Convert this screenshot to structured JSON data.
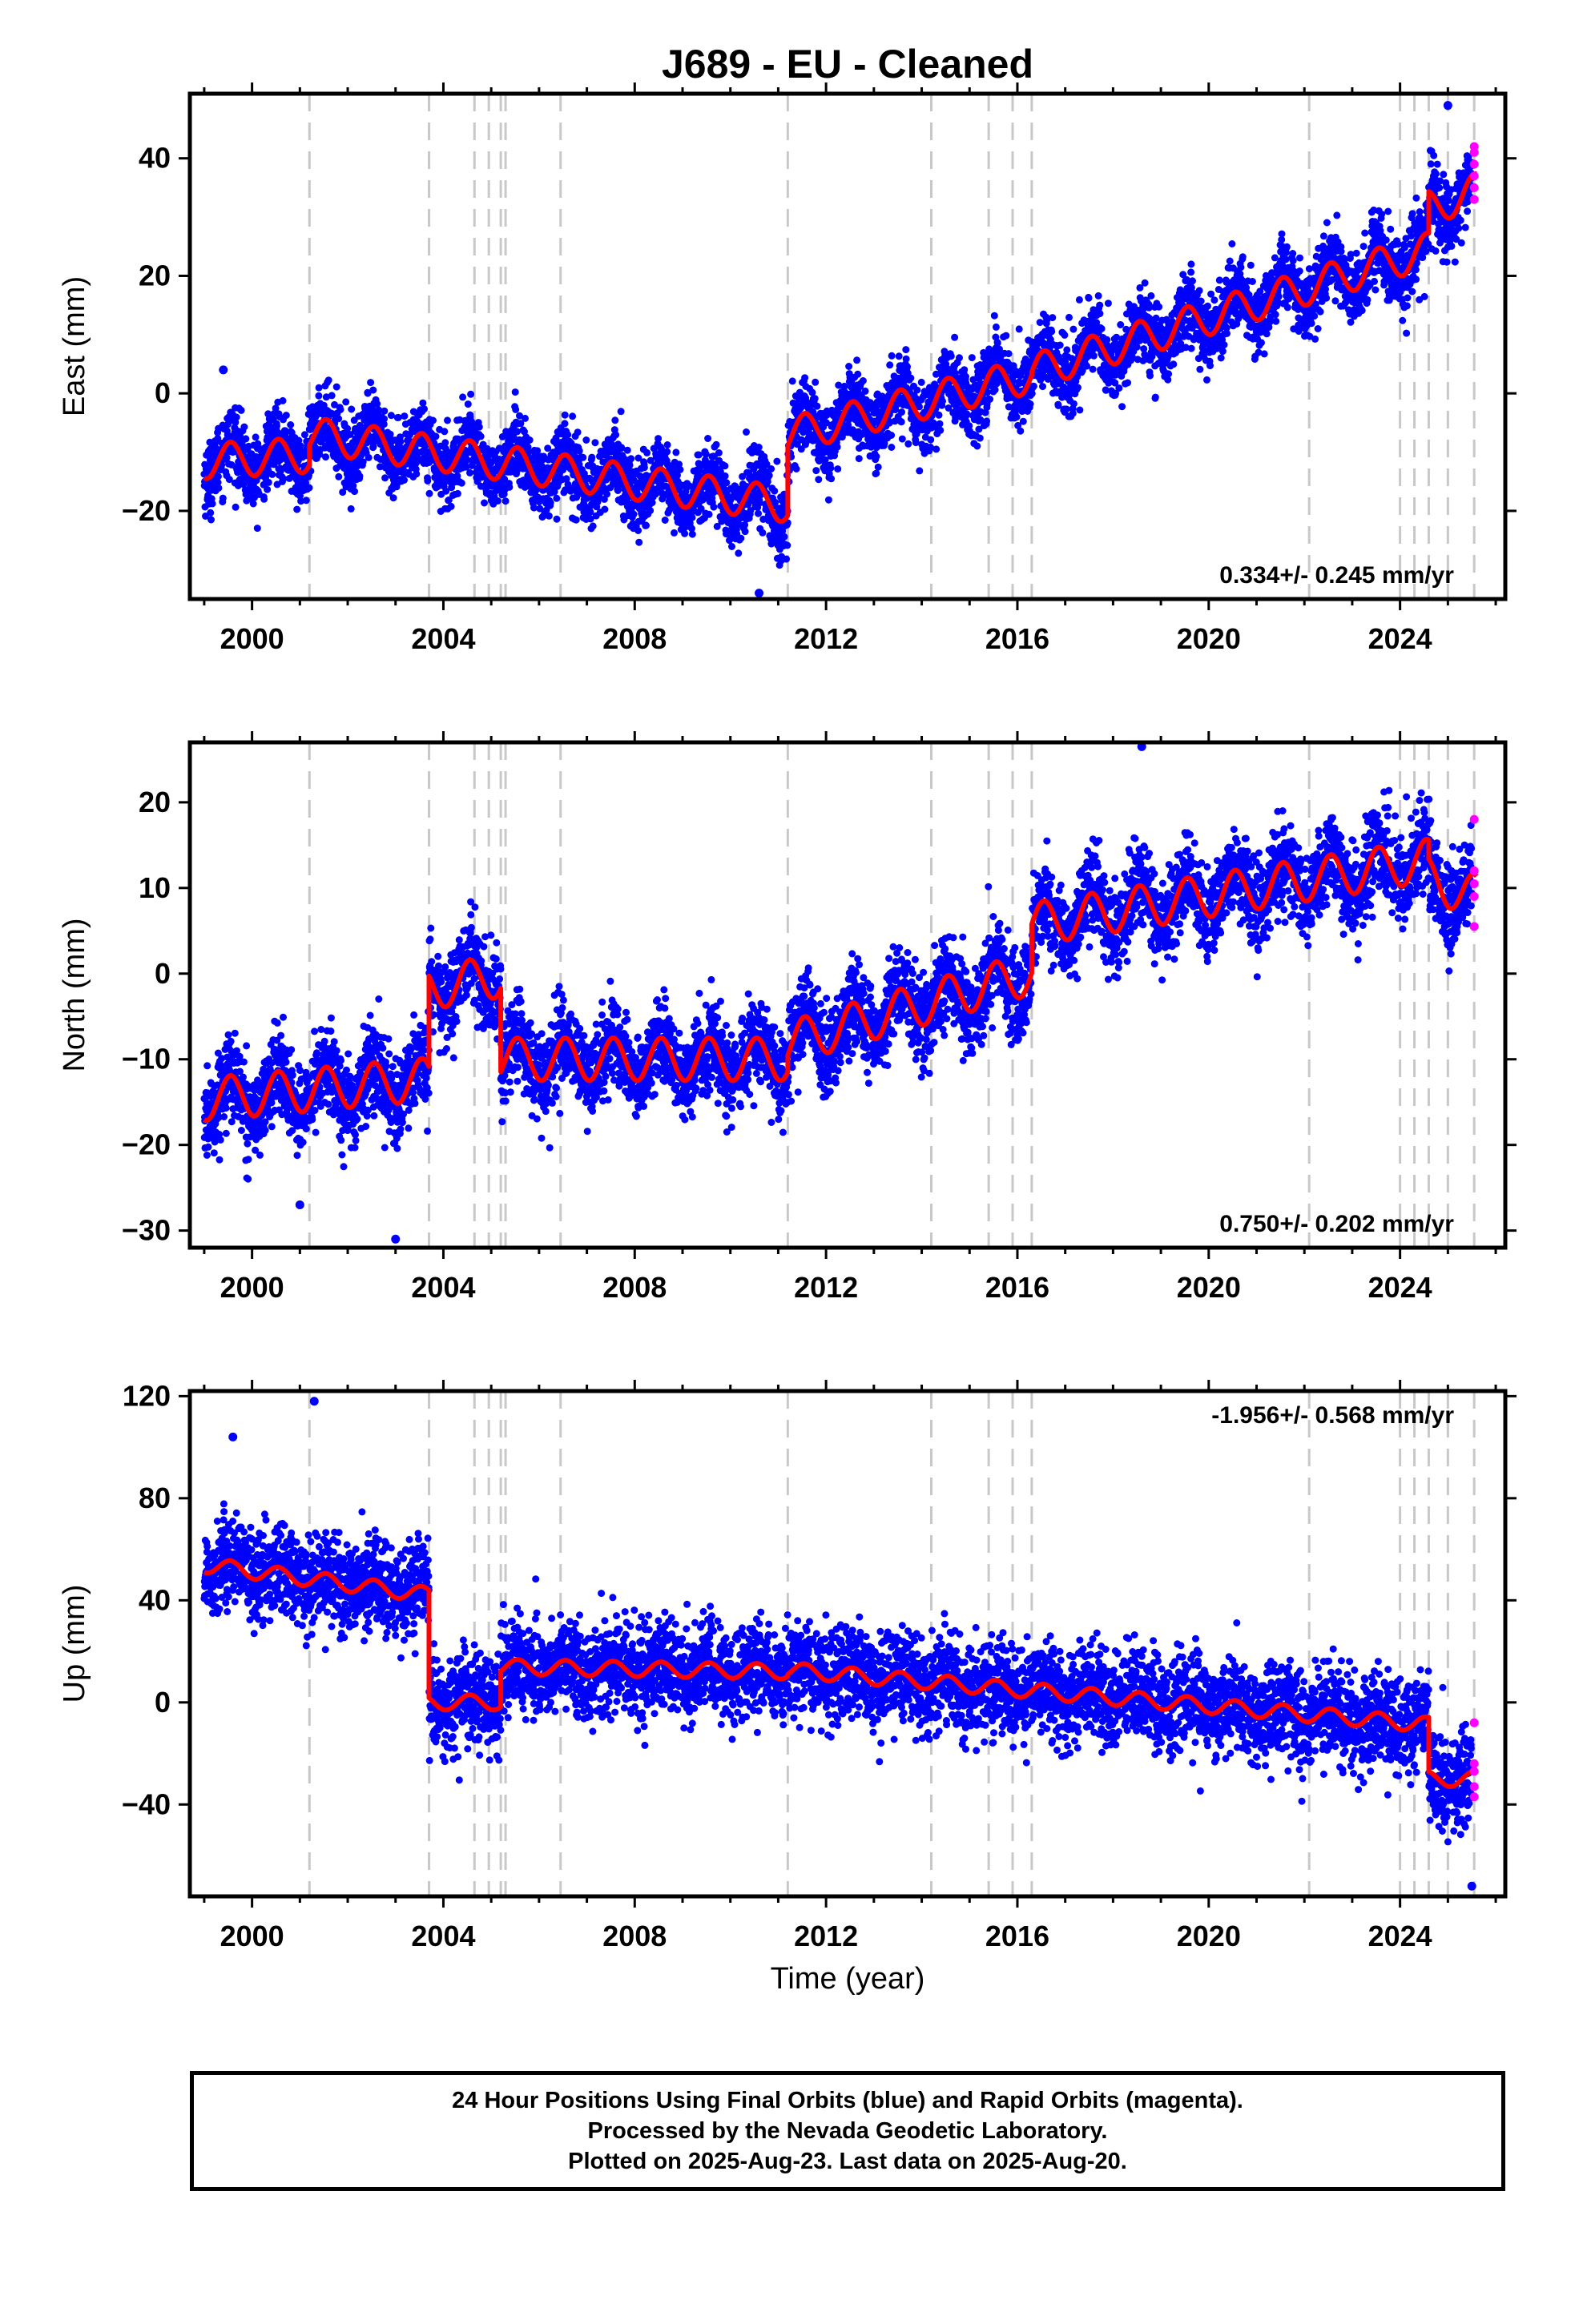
{
  "title": "J689  - EU - Cleaned",
  "x_axis_label": "Time (year)",
  "caption": [
    "24 Hour Positions Using Final Orbits (blue) and Rapid Orbits (magenta).",
    "Processed by the Nevada Geodetic Laboratory.",
    "Plotted on 2025-Aug-23. Last data on 2025-Aug-20."
  ],
  "colors": {
    "final_orbits": "#0000ff",
    "rapid_orbits": "#ff00ff",
    "model": "#ff0000",
    "offset_lines": "#c8c8c8"
  },
  "chart_data": [
    {
      "type": "scatter",
      "component": "east",
      "ylabel": "East (mm)",
      "xlim": [
        1998.7,
        2026.2
      ],
      "ylim": [
        -35,
        51
      ],
      "xticks": [
        2000,
        2004,
        2008,
        2012,
        2016,
        2020,
        2024
      ],
      "yticks": [
        -20,
        0,
        20,
        40
      ],
      "rate_label": "0.334+/- 0.245 mm/yr",
      "offset_epochs": [
        2001.2,
        2003.7,
        2004.65,
        2004.95,
        2005.2,
        2005.3,
        2006.45,
        2011.2,
        2014.2,
        2015.4,
        2015.9,
        2016.3,
        2022.1,
        2024.0,
        2024.3,
        2024.6,
        2025.0,
        2025.55
      ],
      "model_segments": [
        {
          "start": 1999.0,
          "end": 2001.2,
          "level": -11,
          "rate": 0.5
        },
        {
          "start": 2001.2,
          "end": 2011.2,
          "level": -13,
          "rate": -1.2
        },
        {
          "start": 2011.2,
          "end": 2016.3,
          "level": -2,
          "rate": 2.0
        },
        {
          "start": 2016.3,
          "end": 2024.6,
          "level": 14,
          "rate": 2.5
        },
        {
          "start": 2024.6,
          "end": 2025.6,
          "level": 33,
          "rate": 3.0
        }
      ],
      "seasonal_amplitude": 3,
      "scatter_spread": 3,
      "rapid_points": {
        "x": 2025.55,
        "y": [
          33,
          35,
          37,
          39,
          41,
          42
        ]
      },
      "extreme_points": [
        {
          "x": 1999.4,
          "y": 4
        },
        {
          "x": 2025.0,
          "y": 49
        },
        {
          "x": 2010.6,
          "y": -34
        }
      ]
    },
    {
      "type": "scatter",
      "component": "north",
      "ylabel": "North (mm)",
      "xlim": [
        1998.7,
        2026.2
      ],
      "ylim": [
        -32,
        27
      ],
      "xticks": [
        2000,
        2004,
        2008,
        2012,
        2016,
        2020,
        2024
      ],
      "yticks": [
        -30,
        -20,
        -10,
        0,
        10,
        20
      ],
      "rate_label": "0.750+/- 0.202 mm/yr",
      "offset_epochs": [
        2001.2,
        2003.7,
        2004.65,
        2004.95,
        2005.2,
        2005.3,
        2006.45,
        2011.2,
        2014.2,
        2015.4,
        2015.9,
        2016.3,
        2022.1,
        2024.0,
        2024.3,
        2024.6,
        2025.0,
        2025.55
      ],
      "model_segments": [
        {
          "start": 1999.0,
          "end": 2003.7,
          "level": -13.5,
          "rate": 0.5
        },
        {
          "start": 2003.7,
          "end": 2005.2,
          "level": -1,
          "rate": 1.0
        },
        {
          "start": 2005.2,
          "end": 2011.2,
          "level": -10,
          "rate": 0.0
        },
        {
          "start": 2011.2,
          "end": 2016.3,
          "level": -4,
          "rate": 1.6
        },
        {
          "start": 2016.3,
          "end": 2024.6,
          "level": 9.5,
          "rate": 0.9
        },
        {
          "start": 2024.6,
          "end": 2025.6,
          "level": 10,
          "rate": -2.0
        }
      ],
      "seasonal_amplitude": 2.5,
      "scatter_spread": 2.5,
      "rapid_points": {
        "x": 2025.55,
        "y": [
          5.5,
          9,
          10.5,
          12,
          18
        ]
      },
      "extreme_points": [
        {
          "x": 2018.6,
          "y": 26.5
        },
        {
          "x": 2003.0,
          "y": -31
        },
        {
          "x": 2001.0,
          "y": -27
        }
      ]
    },
    {
      "type": "scatter",
      "component": "up",
      "ylabel": "Up (mm)",
      "xlim": [
        1998.7,
        2026.2
      ],
      "ylim": [
        -76,
        122
      ],
      "xticks": [
        2000,
        2004,
        2008,
        2012,
        2016,
        2020,
        2024
      ],
      "yticks": [
        -40,
        0,
        40,
        80,
        120
      ],
      "rate_label": "-1.956+/- 0.568 mm/yr",
      "x_axis_label_shown": true,
      "offset_epochs": [
        2001.2,
        2003.7,
        2004.65,
        2004.95,
        2005.2,
        2005.3,
        2006.45,
        2011.2,
        2014.2,
        2015.4,
        2015.9,
        2016.3,
        2022.1,
        2024.0,
        2024.3,
        2024.6,
        2025.0,
        2025.55
      ],
      "model_segments": [
        {
          "start": 1999.0,
          "end": 2003.7,
          "level": 48,
          "rate": -2.5
        },
        {
          "start": 2003.7,
          "end": 2005.2,
          "level": 0,
          "rate": 0.0
        },
        {
          "start": 2005.2,
          "end": 2011.2,
          "level": 13,
          "rate": -0.3
        },
        {
          "start": 2011.2,
          "end": 2024.6,
          "level": 2,
          "rate": -1.6
        },
        {
          "start": 2024.6,
          "end": 2025.6,
          "level": -30,
          "rate": 0.0
        }
      ],
      "seasonal_amplitude": 3,
      "scatter_spread": 9,
      "rapid_points": {
        "x": 2025.55,
        "y": [
          -37,
          -33,
          -27,
          -24,
          -8
        ]
      },
      "extreme_points": [
        {
          "x": 2001.3,
          "y": 118
        },
        {
          "x": 2025.5,
          "y": -72
        },
        {
          "x": 1999.6,
          "y": 104
        }
      ]
    }
  ]
}
